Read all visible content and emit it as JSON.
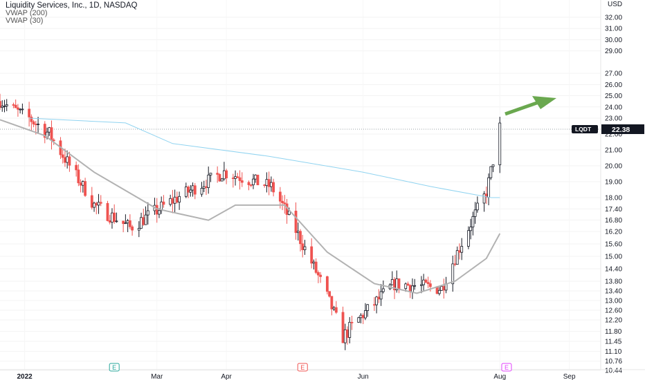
{
  "header": {
    "title": "Liquidity Services, Inc., 1D, NASDAQ",
    "indicators": [
      "VWAP (200)",
      "VWAP (30)"
    ]
  },
  "axis": {
    "currency": "USD",
    "price_ticks": [
      "32.00",
      "31.00",
      "30.00",
      "29.00",
      "27.00",
      "26.00",
      "25.00",
      "24.00",
      "23.00",
      "22.00",
      "21.00",
      "20.00",
      "19.00",
      "18.00",
      "17.40",
      "16.80",
      "16.20",
      "15.60",
      "15.00",
      "14.40",
      "13.80",
      "13.40",
      "13.00",
      "12.60",
      "12.20",
      "11.80",
      "11.45",
      "11.10",
      "10.76",
      "10.44"
    ],
    "time_ticks": [
      "2022",
      "Mar",
      "Apr",
      "Jun",
      "Aug",
      "Sep"
    ]
  },
  "price_label": {
    "symbol": "LQDT",
    "value": "22.38"
  },
  "earnings_markers": [
    {
      "label": "E",
      "color": "#26a69a"
    },
    {
      "label": "E",
      "color": "#ef5350"
    },
    {
      "label": "E",
      "color": "#e040fb"
    }
  ],
  "colors": {
    "up": "#131722",
    "down": "#ef5350",
    "vwap200": "#8fd3f0",
    "vwap30": "#b2b2b2",
    "arrow": "#6aa84f",
    "pricebox": "#131722"
  },
  "chart_data": {
    "type": "candlestick",
    "x_range": [
      "2021-12-21",
      "2022-09-15"
    ],
    "y_scale": "log",
    "last_price": 22.38,
    "ohlc_anchor_points": [
      {
        "date": "2021-12-21",
        "price": 24.5
      },
      {
        "date": "2022-01-12",
        "price": 22.0
      },
      {
        "date": "2022-02-01",
        "price": 17.6
      },
      {
        "date": "2022-02-17",
        "price": 16.4
      },
      {
        "date": "2022-03-31",
        "price": 19.6
      },
      {
        "date": "2022-04-21",
        "price": 18.7
      },
      {
        "date": "2022-05-23",
        "price": 11.6
      },
      {
        "date": "2022-06-15",
        "price": 13.7
      },
      {
        "date": "2022-07-06",
        "price": 13.5
      },
      {
        "date": "2022-07-26",
        "price": 18.3
      },
      {
        "date": "2022-08-01",
        "price": 22.38
      }
    ],
    "series": [
      {
        "name": "VWAP (200)",
        "type": "line",
        "points": [
          {
            "date": "2022-01-03",
            "price": 23.0
          },
          {
            "date": "2022-02-15",
            "price": 22.7
          },
          {
            "date": "2022-03-08",
            "price": 21.4
          },
          {
            "date": "2022-04-20",
            "price": 20.6
          },
          {
            "date": "2022-06-01",
            "price": 19.6
          },
          {
            "date": "2022-07-01",
            "price": 18.7
          },
          {
            "date": "2022-07-28",
            "price": 18.0
          },
          {
            "date": "2022-08-01",
            "price": 18.0
          }
        ]
      },
      {
        "name": "VWAP (30)",
        "type": "line",
        "points": [
          {
            "date": "2021-12-21",
            "price": 22.9
          },
          {
            "date": "2022-01-10",
            "price": 21.9
          },
          {
            "date": "2022-02-01",
            "price": 19.6
          },
          {
            "date": "2022-03-01",
            "price": 17.4
          },
          {
            "date": "2022-03-24",
            "price": 16.8
          },
          {
            "date": "2022-04-05",
            "price": 17.6
          },
          {
            "date": "2022-04-27",
            "price": 17.6
          },
          {
            "date": "2022-05-16",
            "price": 15.2
          },
          {
            "date": "2022-06-06",
            "price": 13.7
          },
          {
            "date": "2022-06-25",
            "price": 13.3
          },
          {
            "date": "2022-07-12",
            "price": 13.8
          },
          {
            "date": "2022-07-26",
            "price": 14.9
          },
          {
            "date": "2022-08-01",
            "price": 16.1
          }
        ]
      }
    ]
  }
}
